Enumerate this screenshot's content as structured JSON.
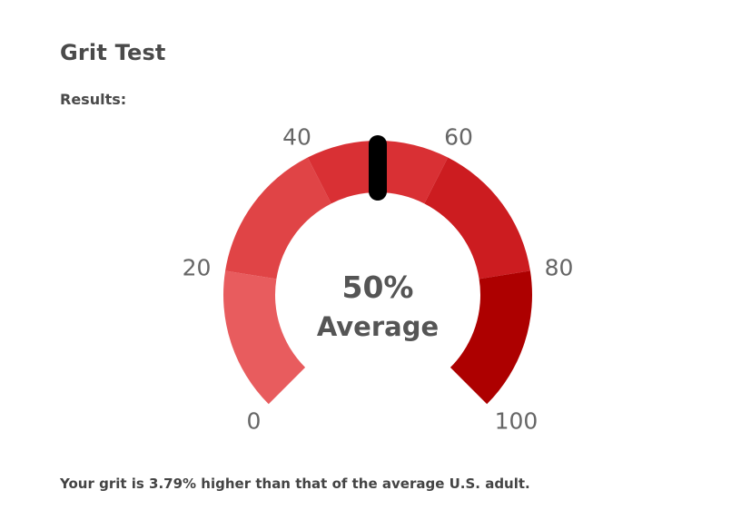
{
  "header": {
    "title": "Grit Test",
    "results_label": "Results:"
  },
  "gauge": {
    "min": 0,
    "max": 100,
    "value": 50,
    "value_text": "50%",
    "category_text": "Average",
    "ticks": [
      {
        "value": 0,
        "label": "0"
      },
      {
        "value": 20,
        "label": "20"
      },
      {
        "value": 40,
        "label": "40"
      },
      {
        "value": 60,
        "label": "60"
      },
      {
        "value": 80,
        "label": "80"
      },
      {
        "value": 100,
        "label": "100"
      }
    ],
    "bands": [
      {
        "from": 0,
        "to": 20,
        "color": "#e85c5e"
      },
      {
        "from": 20,
        "to": 40,
        "color": "#e04446"
      },
      {
        "from": 40,
        "to": 60,
        "color": "#d93034"
      },
      {
        "from": 60,
        "to": 80,
        "color": "#cc1c20"
      },
      {
        "from": 80,
        "to": 100,
        "color": "#ad0000"
      }
    ],
    "needle_color": "#000000"
  },
  "summary": {
    "text": "Your grit is 3.79% higher than that of the average U.S. adult."
  }
}
